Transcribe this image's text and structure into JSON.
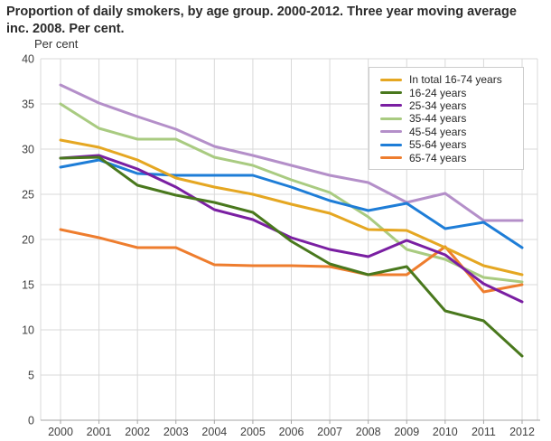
{
  "title": "Proportion of daily smokers, by age group. 2000-2012. Three year moving average inc. 2008. Per cent.",
  "y_axis_unit_label": "Per cent",
  "chart_data": {
    "type": "line",
    "title": "Proportion of daily smokers, by age group. 2000-2012. Three year moving average inc. 2008. Per cent.",
    "xlabel": "",
    "ylabel": "Per cent",
    "x_tick_labels": [
      "2000",
      "2001",
      "2002",
      "2003",
      "2004",
      "2005",
      "2006",
      "2007",
      "2008",
      "2009",
      "2010",
      "2011",
      "2012"
    ],
    "y_ticks": [
      0,
      5,
      10,
      15,
      20,
      25,
      30,
      35,
      40
    ],
    "ylim": [
      0,
      40
    ],
    "grid": true,
    "legend_position": "top-right",
    "series": [
      {
        "name": "In total 16-74 years",
        "color": "#e5a722",
        "values": [
          31.0,
          30.2,
          28.8,
          26.8,
          25.8,
          25.0,
          23.9,
          22.9,
          21.1,
          21.0,
          19.1,
          17.1,
          16.1
        ]
      },
      {
        "name": "16-24 years",
        "color": "#49781d",
        "values": [
          29.0,
          29.1,
          26.0,
          24.9,
          24.1,
          23.0,
          19.8,
          17.3,
          16.1,
          17.0,
          12.1,
          11.0,
          7.1
        ]
      },
      {
        "name": "25-34 years",
        "color": "#7a1fa2",
        "values": [
          29.0,
          29.3,
          27.8,
          25.8,
          23.3,
          22.2,
          20.2,
          18.9,
          18.1,
          19.9,
          18.3,
          15.1,
          13.1
        ]
      },
      {
        "name": "35-44 years",
        "color": "#a9cb81",
        "values": [
          35.0,
          32.3,
          31.1,
          31.1,
          29.1,
          28.2,
          26.6,
          25.2,
          22.5,
          18.9,
          17.8,
          15.8,
          15.3
        ]
      },
      {
        "name": "45-54 years",
        "color": "#b48fc9",
        "values": [
          37.1,
          35.1,
          33.6,
          32.2,
          30.3,
          29.3,
          28.2,
          27.1,
          26.3,
          24.1,
          25.1,
          22.1,
          22.1
        ]
      },
      {
        "name": "55-64 years",
        "color": "#1e7dd7",
        "values": [
          28.0,
          28.8,
          27.3,
          27.1,
          27.1,
          27.1,
          25.8,
          24.3,
          23.2,
          24.0,
          21.2,
          21.9,
          19.1
        ]
      },
      {
        "name": "65-74 years",
        "color": "#ee7d2e",
        "values": [
          21.1,
          20.2,
          19.1,
          19.1,
          17.2,
          17.1,
          17.1,
          17.0,
          16.1,
          16.1,
          19.2,
          14.2,
          15.0
        ]
      }
    ],
    "draw_order": [
      "45-54 years",
      "35-44 years",
      "55-64 years",
      "65-74 years",
      "25-34 years",
      "16-24 years",
      "In total 16-74 years"
    ],
    "colors": {
      "grid": "#d9d9d9",
      "axis": "#a6a6a6",
      "tick_text": "#404040",
      "title_text": "#2b2b2b"
    }
  }
}
